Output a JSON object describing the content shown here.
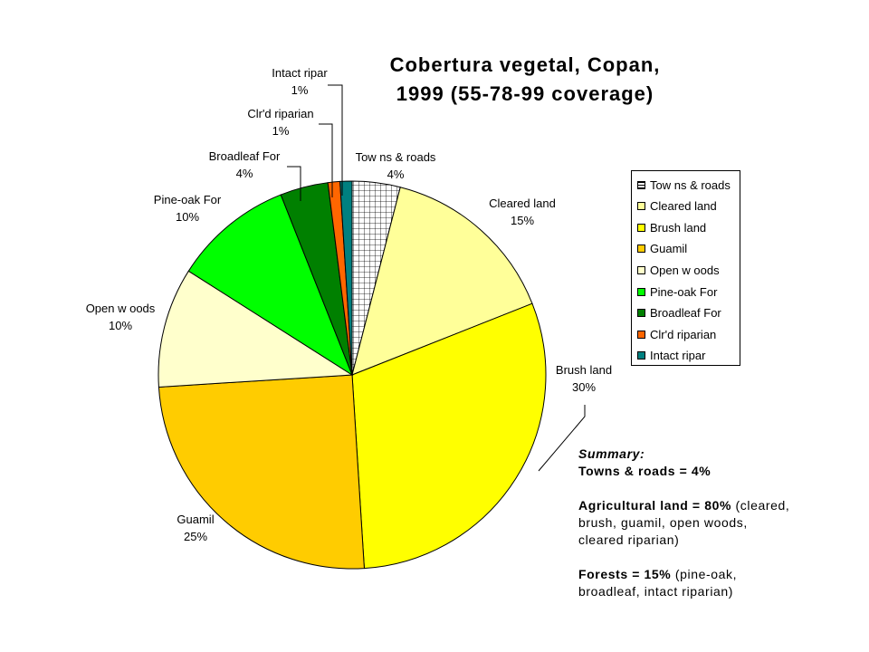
{
  "chart_data": {
    "type": "pie",
    "title": [
      "Cobertura vegetal, Copan,",
      "1999 (55-78-99 coverage)"
    ],
    "slices": [
      {
        "label": "Tow ns & roads",
        "value": 4,
        "pct_label": "4%",
        "color": "#ffffff",
        "pattern": "grid"
      },
      {
        "label": "Cleared land",
        "value": 15,
        "pct_label": "15%",
        "color": "#ffff99"
      },
      {
        "label": "Brush land",
        "value": 30,
        "pct_label": "30%",
        "color": "#ffff00"
      },
      {
        "label": "Guamil",
        "value": 25,
        "pct_label": "25%",
        "color": "#ffcc00"
      },
      {
        "label": "Open w oods",
        "value": 10,
        "pct_label": "10%",
        "color": "#ffffcc"
      },
      {
        "label": "Pine-oak For",
        "value": 10,
        "pct_label": "10%",
        "color": "#00ff00"
      },
      {
        "label": "Broadleaf For",
        "value": 4,
        "pct_label": "4%",
        "color": "#008000"
      },
      {
        "label": "Clr'd riparian",
        "value": 1,
        "pct_label": "1%",
        "color": "#ff6600"
      },
      {
        "label": "Intact ripar",
        "value": 1,
        "pct_label": "1%",
        "color": "#008080"
      }
    ],
    "legend_position": "right"
  },
  "summary": {
    "heading": "Summary:",
    "towns": "Towns & roads = 4%",
    "agri_bold": "Agricultural land = 80%",
    "agri_rest_1": " (cleared,",
    "agri_rest_2": "brush, guamil, open woods,",
    "agri_rest_3": "cleared riparian)",
    "forest_bold": "Forests = 15%",
    "forest_rest_1": " (pine-oak,",
    "forest_rest_2": "broadleaf, intact riparian)"
  }
}
